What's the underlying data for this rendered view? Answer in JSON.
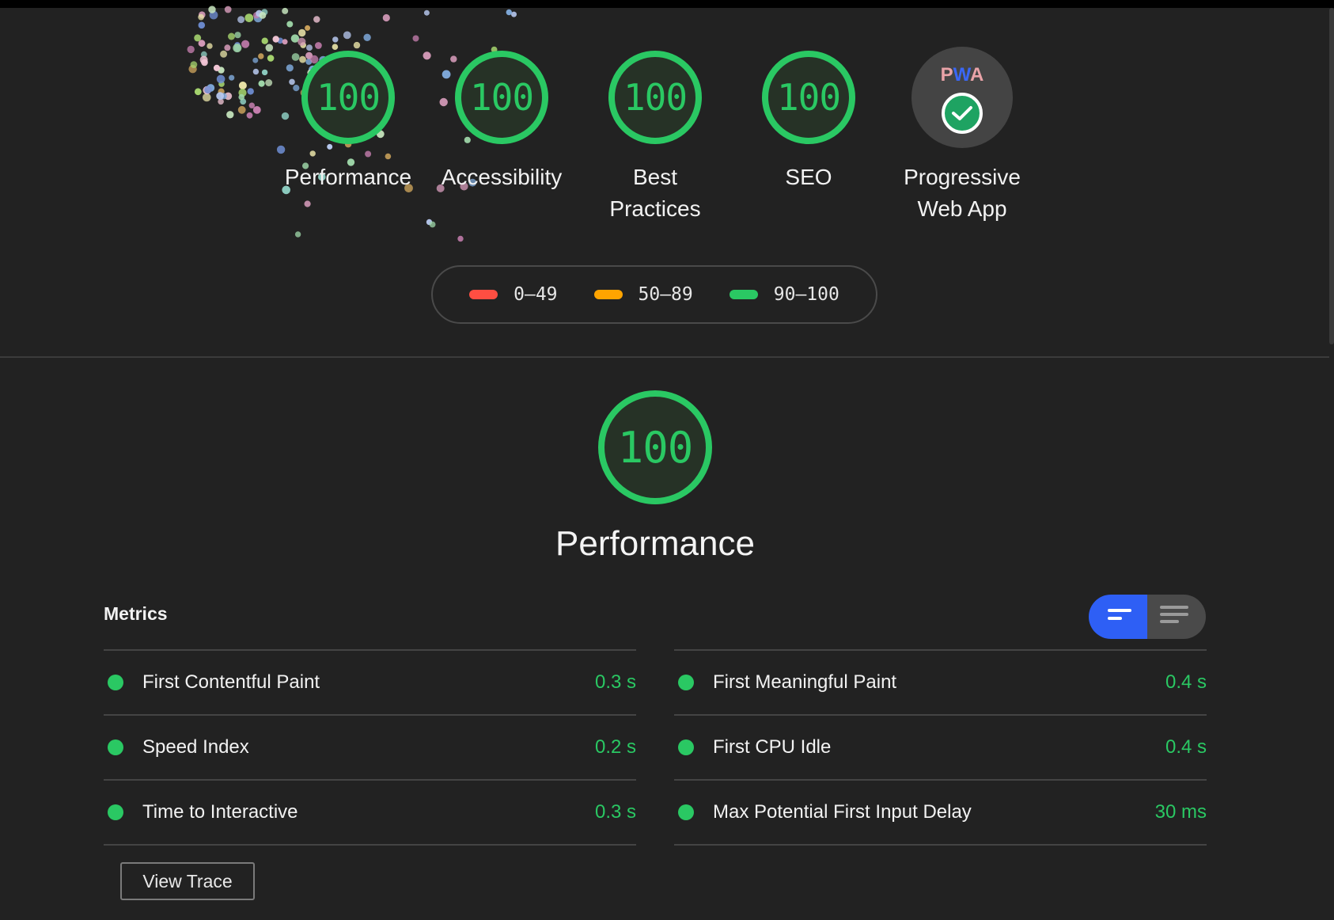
{
  "colors": {
    "background": "#222222",
    "pass": "#2ac863",
    "average": "#ffa400",
    "fail": "#ff4e42",
    "toggle_active": "#2e5ff5"
  },
  "categories": [
    {
      "score": "100",
      "label_line1": "Performance",
      "label_line2": ""
    },
    {
      "score": "100",
      "label_line1": "Accessibility",
      "label_line2": ""
    },
    {
      "score": "100",
      "label_line1": "Best",
      "label_line2": "Practices"
    },
    {
      "score": "100",
      "label_line1": "SEO",
      "label_line2": ""
    }
  ],
  "pwa": {
    "badge_p": "P",
    "badge_w": "W",
    "badge_a": "A",
    "label_line1": "Progressive",
    "label_line2": "Web App",
    "icon": "check-circle-icon"
  },
  "legend": [
    {
      "range": "0–49",
      "color": "#ff4e42"
    },
    {
      "range": "50–89",
      "color": "#ffa400"
    },
    {
      "range": "90–100",
      "color": "#2ac863"
    }
  ],
  "performance": {
    "score": "100",
    "title": "Performance"
  },
  "metrics": {
    "title": "Metrics",
    "left": [
      {
        "name": "First Contentful Paint",
        "value": "0.3 s"
      },
      {
        "name": "Speed Index",
        "value": "0.2 s"
      },
      {
        "name": "Time to Interactive",
        "value": "0.3 s"
      }
    ],
    "right": [
      {
        "name": "First Meaningful Paint",
        "value": "0.4 s"
      },
      {
        "name": "First CPU Idle",
        "value": "0.4 s"
      },
      {
        "name": "Max Potential First Input Delay",
        "value": "30 ms"
      }
    ],
    "view_toggle": {
      "compact_icon": "compact-view-icon",
      "expanded_icon": "expanded-view-icon"
    }
  },
  "view_trace_label": "View Trace"
}
